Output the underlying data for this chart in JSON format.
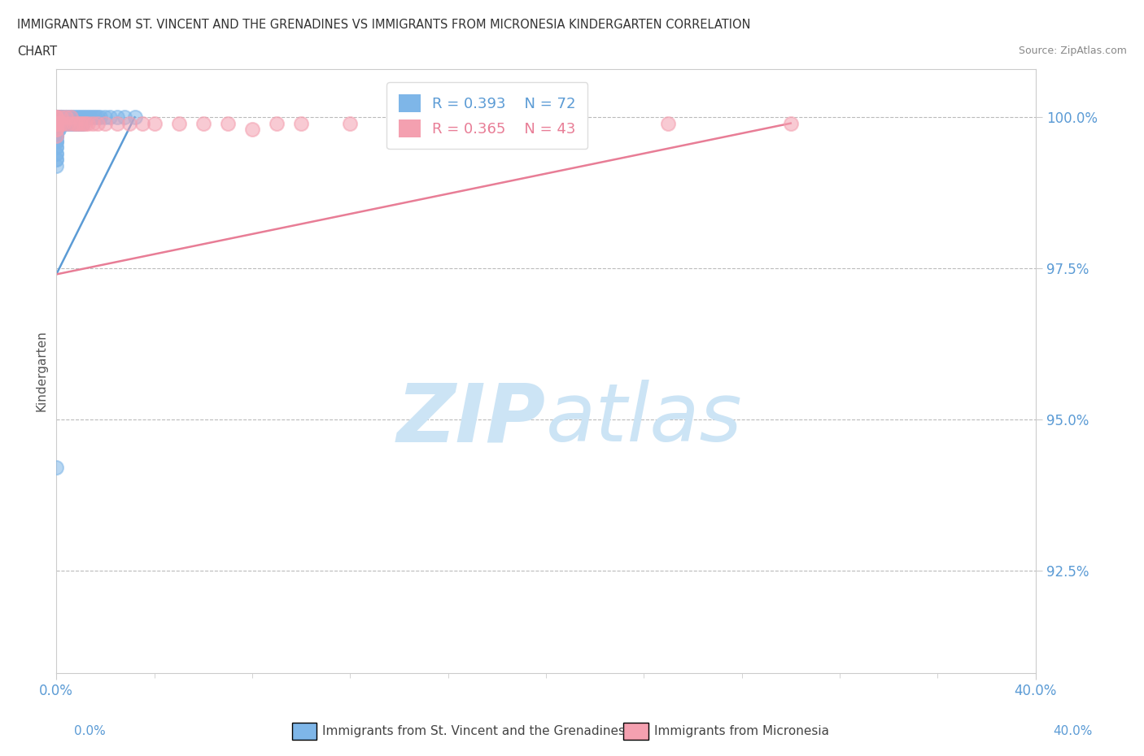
{
  "title_line1": "IMMIGRANTS FROM ST. VINCENT AND THE GRENADINES VS IMMIGRANTS FROM MICRONESIA KINDERGARTEN CORRELATION",
  "title_line2": "CHART",
  "source_text": "Source: ZipAtlas.com",
  "ylabel": "Kindergarten",
  "xlim": [
    0.0,
    0.4
  ],
  "ylim": [
    0.908,
    1.008
  ],
  "yticks": [
    0.925,
    0.95,
    0.975,
    1.0
  ],
  "ytick_labels": [
    "92.5%",
    "95.0%",
    "97.5%",
    "100.0%"
  ],
  "xtick_labels": [
    "0.0%",
    "40.0%"
  ],
  "xticks": [
    0.0,
    0.4
  ],
  "series1_color": "#7eb6e8",
  "series2_color": "#f4a0b0",
  "trendline1_color": "#5b9bd5",
  "trendline2_color": "#e87d96",
  "legend_R1": "R = 0.393",
  "legend_N1": "N = 72",
  "legend_R2": "R = 0.365",
  "legend_N2": "N = 43",
  "watermark_color": "#cce4f5",
  "series1_label": "Immigrants from St. Vincent and the Grenadines",
  "series2_label": "Immigrants from Micronesia",
  "series1_x": [
    0.0,
    0.0,
    0.0,
    0.0,
    0.0,
    0.0,
    0.0,
    0.0,
    0.0,
    0.0,
    0.0,
    0.0,
    0.0,
    0.0,
    0.0,
    0.0,
    0.0,
    0.0,
    0.0,
    0.0,
    0.0,
    0.0,
    0.0,
    0.0,
    0.0,
    0.0,
    0.0,
    0.0,
    0.0,
    0.0,
    0.001,
    0.001,
    0.001,
    0.001,
    0.001,
    0.001,
    0.002,
    0.002,
    0.002,
    0.002,
    0.003,
    0.003,
    0.003,
    0.004,
    0.004,
    0.005,
    0.005,
    0.006,
    0.006,
    0.007,
    0.007,
    0.008,
    0.008,
    0.009,
    0.009,
    0.01,
    0.01,
    0.011,
    0.011,
    0.012,
    0.013,
    0.014,
    0.015,
    0.016,
    0.017,
    0.018,
    0.02,
    0.022,
    0.025,
    0.028,
    0.032,
    0.0
  ],
  "series1_y": [
    1.0,
    1.0,
    1.0,
    1.0,
    1.0,
    0.999,
    0.999,
    0.999,
    0.999,
    0.999,
    0.999,
    0.999,
    0.998,
    0.998,
    0.998,
    0.998,
    0.997,
    0.997,
    0.997,
    0.997,
    0.996,
    0.996,
    0.996,
    0.995,
    0.995,
    0.994,
    0.994,
    0.993,
    0.993,
    0.992,
    1.0,
    1.0,
    0.999,
    0.999,
    0.998,
    0.998,
    1.0,
    1.0,
    0.999,
    0.999,
    1.0,
    0.999,
    0.999,
    1.0,
    0.999,
    1.0,
    0.999,
    1.0,
    0.999,
    1.0,
    0.999,
    1.0,
    0.999,
    1.0,
    0.999,
    1.0,
    0.999,
    1.0,
    0.999,
    1.0,
    1.0,
    1.0,
    1.0,
    1.0,
    1.0,
    1.0,
    1.0,
    1.0,
    1.0,
    1.0,
    1.0,
    0.942
  ],
  "series2_x": [
    0.0,
    0.0,
    0.0,
    0.0,
    0.0,
    0.0,
    0.0,
    0.0,
    0.0,
    0.0,
    0.001,
    0.002,
    0.002,
    0.003,
    0.004,
    0.005,
    0.006,
    0.007,
    0.008,
    0.009,
    0.01,
    0.011,
    0.012,
    0.013,
    0.015,
    0.017,
    0.02,
    0.025,
    0.03,
    0.035,
    0.04,
    0.05,
    0.06,
    0.07,
    0.08,
    0.09,
    0.1,
    0.12,
    0.15,
    0.18,
    0.21,
    0.25,
    0.3
  ],
  "series2_y": [
    1.0,
    1.0,
    1.0,
    0.999,
    0.999,
    0.999,
    0.999,
    0.998,
    0.998,
    0.997,
    0.999,
    1.0,
    0.999,
    0.999,
    1.0,
    0.999,
    1.0,
    0.999,
    0.999,
    0.999,
    0.999,
    0.999,
    0.999,
    0.999,
    0.999,
    0.999,
    0.999,
    0.999,
    0.999,
    0.999,
    0.999,
    0.999,
    0.999,
    0.999,
    0.998,
    0.999,
    0.999,
    0.999,
    0.999,
    0.999,
    0.999,
    0.999,
    0.999
  ],
  "trendline1_x": [
    0.0,
    0.032
  ],
  "trendline1_y": [
    0.974,
    1.0
  ],
  "trendline2_x": [
    0.0,
    0.3
  ],
  "trendline2_y": [
    0.974,
    0.999
  ]
}
